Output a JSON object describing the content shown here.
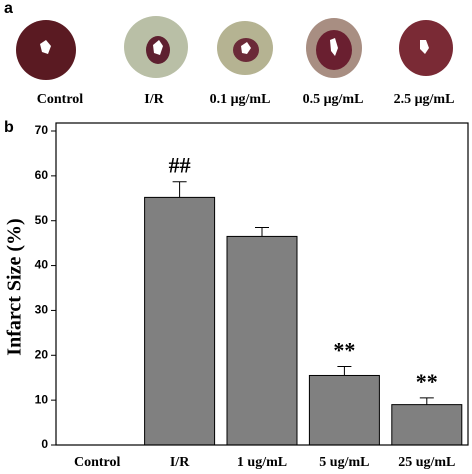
{
  "panel_a": {
    "label": "a",
    "labels": [
      "Control",
      "I/R",
      "0.1 μg/mL",
      "0.5 μg/mL",
      "2.5 μg/mL"
    ]
  },
  "chart_data": {
    "type": "bar",
    "panel_label": "b",
    "y_label": "Infarct Size (%)",
    "categories": [
      "Control",
      "I/R",
      "1 ug/mL",
      "5 ug/mL",
      "25 ug/mL"
    ],
    "values": [
      0,
      55.2,
      46.5,
      15.5,
      9
    ],
    "errors": [
      0,
      3.5,
      2,
      2,
      1.5
    ],
    "annotations": [
      null,
      "##",
      null,
      "**",
      "**"
    ],
    "color": "#808080",
    "ylim": [
      0,
      70
    ],
    "yticks": [
      0,
      10,
      20,
      30,
      40,
      50,
      60,
      70
    ]
  }
}
